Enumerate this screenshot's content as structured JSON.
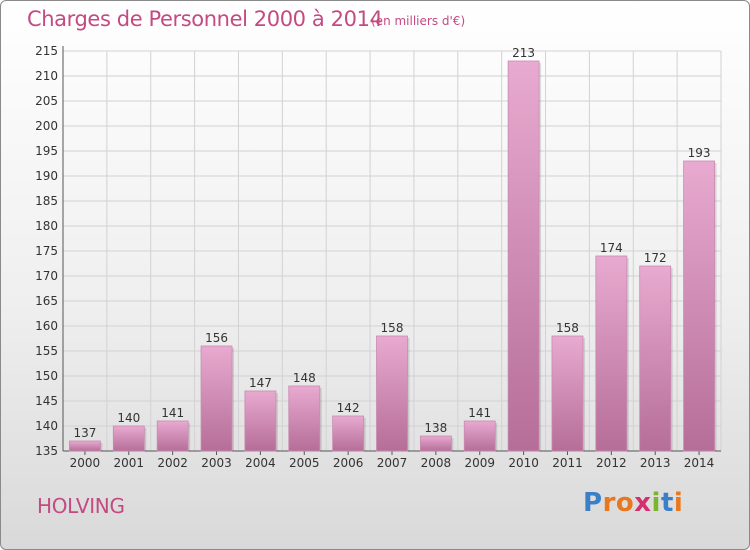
{
  "header": {
    "title": "Charges de Personnel 2000 à 2014",
    "subtitle": "(en milliers d'€)"
  },
  "footer": {
    "commune": "HOLVING",
    "logo": {
      "letters": [
        "P",
        "r",
        "o",
        "x",
        "i",
        "t",
        "i"
      ],
      "colors": [
        "#3a7fc8",
        "#e8781f",
        "#e8781f",
        "#d42f6e",
        "#7ab52e",
        "#3a7fc8",
        "#e8781f"
      ]
    }
  },
  "colors": {
    "accent": "#c44a82",
    "bar_top": "#e8aad0",
    "bar_bottom": "#b56e98",
    "grid": "#d2d2d2"
  },
  "chart_data": {
    "type": "bar",
    "categories": [
      "2000",
      "2001",
      "2002",
      "2003",
      "2004",
      "2005",
      "2006",
      "2007",
      "2008",
      "2009",
      "2010",
      "2011",
      "2012",
      "2013",
      "2014"
    ],
    "values": [
      137,
      140,
      141,
      156,
      147,
      148,
      142,
      158,
      138,
      141,
      213,
      158,
      174,
      172,
      193
    ],
    "ylim": [
      135,
      215
    ],
    "yticks": [
      135,
      140,
      145,
      150,
      155,
      160,
      165,
      170,
      175,
      180,
      185,
      190,
      195,
      200,
      205,
      210,
      215
    ],
    "grid": true,
    "xlabel": "",
    "ylabel": ""
  }
}
